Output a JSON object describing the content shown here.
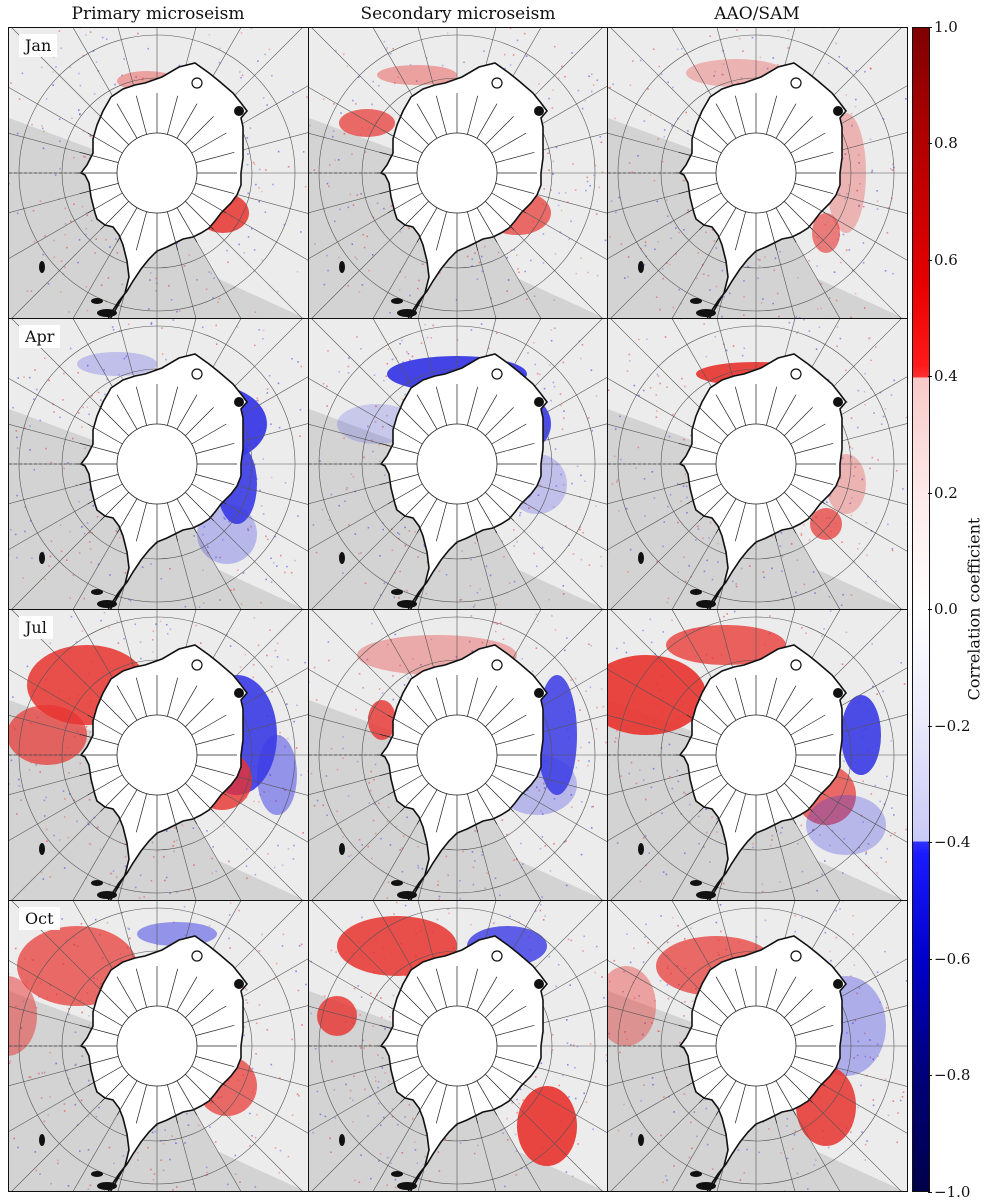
{
  "columns": [
    {
      "title": "Primary microseism"
    },
    {
      "title": "Secondary microseism"
    },
    {
      "title": "AAO/SAM"
    }
  ],
  "rows": [
    {
      "month": "Jan"
    },
    {
      "month": "Apr"
    },
    {
      "month": "Jul"
    },
    {
      "month": "Oct"
    }
  ],
  "colorbar": {
    "label": "Correlation coefficient",
    "ticks": [
      "1.0",
      "0.8",
      "0.6",
      "0.4",
      "0.2",
      "0.0",
      "−0.2",
      "−0.4",
      "−0.6",
      "−0.8",
      "−1.0"
    ],
    "range": [
      -1.0,
      1.0
    ],
    "colormap": "seismic"
  },
  "colors": {
    "positive": "#e8322e",
    "negative": "#3a3ae6",
    "masked": "#d3d3d3",
    "ocean": "#ececec",
    "land": "#ffffff"
  },
  "stations": [
    {
      "name": "filled-circle-station"
    },
    {
      "name": "open-circle-station"
    }
  ]
}
